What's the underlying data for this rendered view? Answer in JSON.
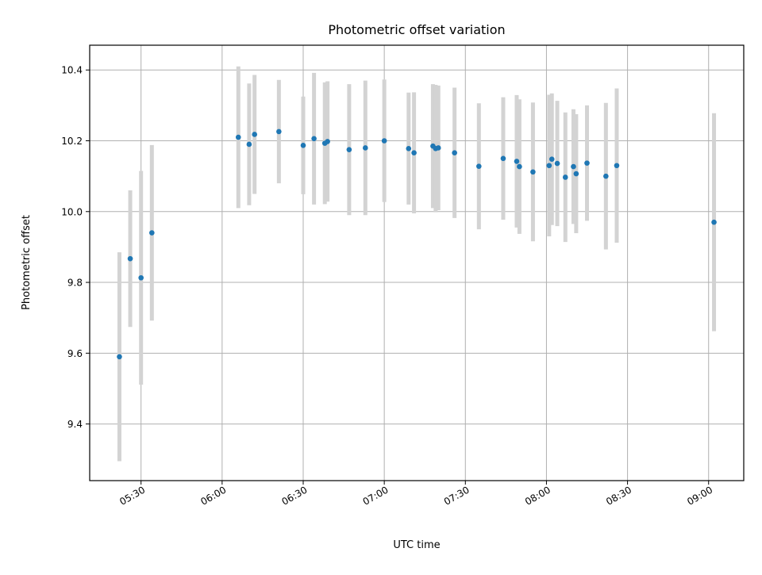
{
  "chart_data": {
    "type": "scatter",
    "title": "Photometric offset variation",
    "xlabel": "UTC time",
    "ylabel": "Photometric offset",
    "x_tick_labels": [
      "05:30",
      "06:00",
      "06:30",
      "07:00",
      "07:30",
      "08:00",
      "08:30",
      "09:00"
    ],
    "y_tick_labels": [
      "9.4",
      "9.6",
      "9.8",
      "10.0",
      "10.2",
      "10.4"
    ],
    "xlim": [
      "05:11",
      "09:13"
    ],
    "ylim": [
      9.24,
      10.47
    ],
    "grid": true,
    "marker_color": "#1f77b4",
    "errorbar_color": "#d3d3d3",
    "points": [
      {
        "t": "05:22",
        "y": 9.59,
        "err": 0.295
      },
      {
        "t": "05:26",
        "y": 9.867,
        "err": 0.193
      },
      {
        "t": "05:30",
        "y": 9.813,
        "err": 0.302
      },
      {
        "t": "05:34",
        "y": 9.94,
        "err": 0.248
      },
      {
        "t": "06:06",
        "y": 10.21,
        "err": 0.2
      },
      {
        "t": "06:10",
        "y": 10.19,
        "err": 0.172
      },
      {
        "t": "06:12",
        "y": 10.218,
        "err": 0.168
      },
      {
        "t": "06:21",
        "y": 10.226,
        "err": 0.146
      },
      {
        "t": "06:30",
        "y": 10.187,
        "err": 0.138
      },
      {
        "t": "06:34",
        "y": 10.206,
        "err": 0.186
      },
      {
        "t": "06:38",
        "y": 10.193,
        "err": 0.172
      },
      {
        "t": "06:39",
        "y": 10.198,
        "err": 0.17
      },
      {
        "t": "06:47",
        "y": 10.175,
        "err": 0.185
      },
      {
        "t": "06:53",
        "y": 10.18,
        "err": 0.19
      },
      {
        "t": "07:00",
        "y": 10.2,
        "err": 0.173
      },
      {
        "t": "07:09",
        "y": 10.178,
        "err": 0.158
      },
      {
        "t": "07:11",
        "y": 10.166,
        "err": 0.171
      },
      {
        "t": "07:18",
        "y": 10.185,
        "err": 0.175
      },
      {
        "t": "07:19",
        "y": 10.178,
        "err": 0.18
      },
      {
        "t": "07:20",
        "y": 10.18,
        "err": 0.176
      },
      {
        "t": "07:26",
        "y": 10.166,
        "err": 0.184
      },
      {
        "t": "07:35",
        "y": 10.128,
        "err": 0.178
      },
      {
        "t": "07:44",
        "y": 10.15,
        "err": 0.173
      },
      {
        "t": "07:49",
        "y": 10.142,
        "err": 0.187
      },
      {
        "t": "07:50",
        "y": 10.127,
        "err": 0.19
      },
      {
        "t": "07:55",
        "y": 10.112,
        "err": 0.196
      },
      {
        "t": "08:01",
        "y": 10.13,
        "err": 0.2
      },
      {
        "t": "08:02",
        "y": 10.148,
        "err": 0.186
      },
      {
        "t": "08:04",
        "y": 10.136,
        "err": 0.177
      },
      {
        "t": "08:07",
        "y": 10.097,
        "err": 0.183
      },
      {
        "t": "08:10",
        "y": 10.127,
        "err": 0.162
      },
      {
        "t": "08:11",
        "y": 10.107,
        "err": 0.168
      },
      {
        "t": "08:15",
        "y": 10.137,
        "err": 0.163
      },
      {
        "t": "08:22",
        "y": 10.1,
        "err": 0.207
      },
      {
        "t": "08:26",
        "y": 10.13,
        "err": 0.218
      },
      {
        "t": "09:02",
        "y": 9.97,
        "err": 0.308
      }
    ]
  }
}
